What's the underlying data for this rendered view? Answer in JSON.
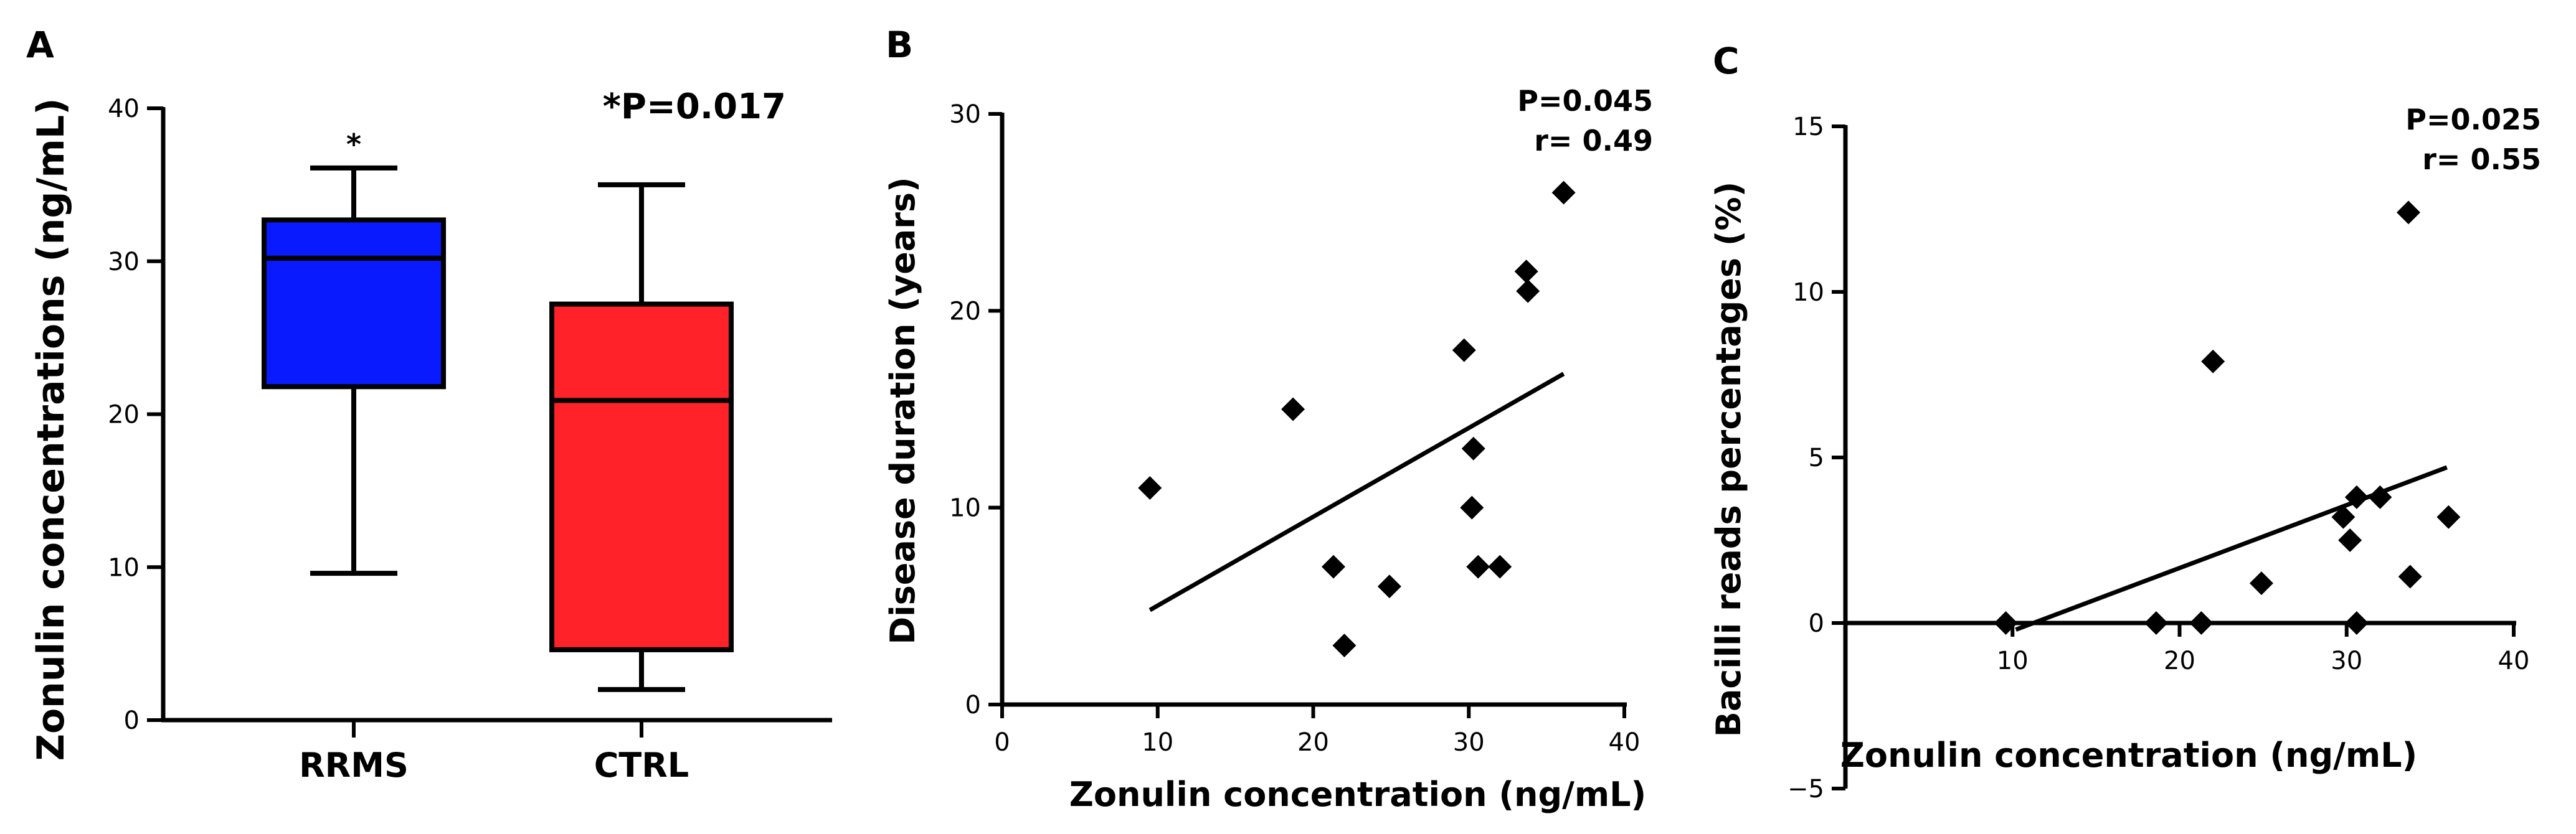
{
  "chart_data": [
    {
      "type": "box",
      "panel": "A",
      "ylabel": "Zonulin concentrations (ng/mL)",
      "ylim": [
        0,
        40
      ],
      "yticks": [
        0,
        10,
        20,
        30,
        40
      ],
      "categories": [
        "RRMS",
        "CTRL"
      ],
      "boxes": [
        {
          "name": "RRMS",
          "min": 9.6,
          "q1": 21.8,
          "median": 30.2,
          "q3": 32.7,
          "max": 36.1,
          "color": "#0a1aff",
          "marker": "*"
        },
        {
          "name": "CTRL",
          "min": 2.0,
          "q1": 4.6,
          "median": 20.9,
          "q3": 27.2,
          "max": 35.0,
          "color": "#ff2228"
        }
      ],
      "annotation": "*P=0.017"
    },
    {
      "type": "scatter",
      "panel": "B",
      "xlabel": "Zonulin concentration (ng/mL)",
      "ylabel": "Disease duration (years)",
      "xlim": [
        0,
        40
      ],
      "ylim": [
        0,
        30
      ],
      "xticks": [
        0,
        10,
        20,
        30,
        40
      ],
      "yticks": [
        0,
        10,
        20,
        30
      ],
      "points": [
        {
          "x": 9.5,
          "y": 11
        },
        {
          "x": 18.7,
          "y": 15
        },
        {
          "x": 21.3,
          "y": 7
        },
        {
          "x": 22.0,
          "y": 3
        },
        {
          "x": 24.9,
          "y": 6
        },
        {
          "x": 29.7,
          "y": 18
        },
        {
          "x": 30.3,
          "y": 13
        },
        {
          "x": 30.2,
          "y": 10
        },
        {
          "x": 30.6,
          "y": 7
        },
        {
          "x": 32.0,
          "y": 7
        },
        {
          "x": 33.7,
          "y": 22
        },
        {
          "x": 33.8,
          "y": 21
        },
        {
          "x": 36.1,
          "y": 26
        }
      ],
      "fit": {
        "x": [
          9.5,
          36.1
        ],
        "y": [
          4.8,
          16.8
        ]
      },
      "annotation": [
        "P=0.045",
        "r= 0.49"
      ]
    },
    {
      "type": "scatter",
      "panel": "C",
      "xlabel": "Zonulin concentration (ng/mL)",
      "ylabel": "Bacilli reads percentages (%)",
      "xlim": [
        0,
        40
      ],
      "ylim": [
        -5,
        15
      ],
      "xticks": [
        10,
        20,
        30,
        40
      ],
      "yticks": [
        -5,
        0,
        5,
        10,
        15
      ],
      "points": [
        {
          "x": 9.6,
          "y": 0
        },
        {
          "x": 18.6,
          "y": 0
        },
        {
          "x": 21.3,
          "y": 0
        },
        {
          "x": 22.0,
          "y": 7.9
        },
        {
          "x": 24.9,
          "y": 1.2
        },
        {
          "x": 29.8,
          "y": 3.2
        },
        {
          "x": 30.2,
          "y": 2.5
        },
        {
          "x": 30.6,
          "y": 3.8
        },
        {
          "x": 30.6,
          "y": 0
        },
        {
          "x": 32.0,
          "y": 3.8
        },
        {
          "x": 33.7,
          "y": 12.4
        },
        {
          "x": 33.8,
          "y": 1.4
        },
        {
          "x": 36.1,
          "y": 3.2
        }
      ],
      "fit": {
        "x": [
          10.2,
          36.0
        ],
        "y": [
          -0.2,
          4.7
        ]
      },
      "annotation": [
        "P=0.025",
        "r= 0.55"
      ]
    }
  ]
}
